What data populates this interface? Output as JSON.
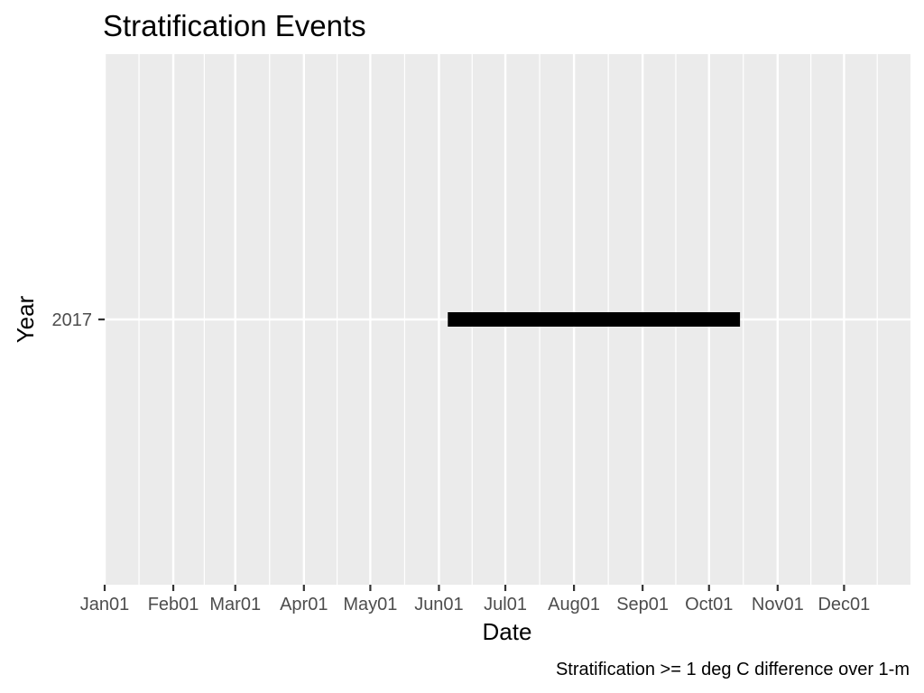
{
  "chart_data": {
    "type": "segment",
    "title": "Stratification Events",
    "xlabel": "Date",
    "ylabel": "Year",
    "caption": "Stratification >= 1 deg C difference over 1-m",
    "x_axis_type": "date",
    "xlim": [
      "2017-01-01",
      "2017-12-31"
    ],
    "x_ticks": [
      {
        "date": "2017-01-01",
        "label": "Jan01"
      },
      {
        "date": "2017-02-01",
        "label": "Feb01"
      },
      {
        "date": "2017-03-01",
        "label": "Mar01"
      },
      {
        "date": "2017-04-01",
        "label": "Apr01"
      },
      {
        "date": "2017-05-01",
        "label": "May01"
      },
      {
        "date": "2017-06-01",
        "label": "Jun01"
      },
      {
        "date": "2017-07-01",
        "label": "Jul01"
      },
      {
        "date": "2017-08-01",
        "label": "Aug01"
      },
      {
        "date": "2017-09-01",
        "label": "Sep01"
      },
      {
        "date": "2017-10-01",
        "label": "Oct01"
      },
      {
        "date": "2017-11-01",
        "label": "Nov01"
      },
      {
        "date": "2017-12-01",
        "label": "Dec01"
      }
    ],
    "y_categories": [
      "2017"
    ],
    "segments": [
      {
        "year": "2017",
        "start": "2017-06-05",
        "end": "2017-10-15"
      }
    ],
    "grid": true,
    "colors": {
      "panel": "#ebebeb",
      "grid": "#ffffff",
      "segment": "#000000",
      "tick_text": "#4d4d4d",
      "tick_mark": "#333333"
    }
  }
}
